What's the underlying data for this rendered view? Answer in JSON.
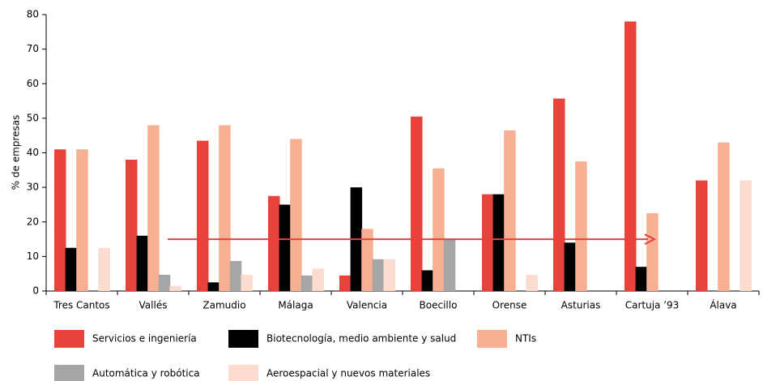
{
  "chart_data": {
    "type": "bar",
    "y_label": "% de empresas",
    "categories": [
      "Tres Cantos",
      "Vallés",
      "Zamudio",
      "Málaga",
      "Valencia",
      "Boecillo",
      "Orense",
      "Asturias",
      "Cartuja ’93",
      "Álava"
    ],
    "series": [
      {
        "name": "Servicios e ingeniería",
        "color": "#e8423a",
        "values": [
          41,
          38,
          43.5,
          27.5,
          4.5,
          50.5,
          28,
          55.7,
          78,
          32
        ]
      },
      {
        "name": "Biotecnología, medio ambiente y salud",
        "color": "#000000",
        "values": [
          12.5,
          16,
          2.5,
          25,
          30,
          6,
          28,
          14,
          7,
          0
        ]
      },
      {
        "name": "NTIs",
        "color": "#f7b093",
        "values": [
          41,
          48,
          48,
          44,
          18,
          35.5,
          46.5,
          37.5,
          22.5,
          43
        ]
      },
      {
        "name": "Automática y robótica",
        "color": "#a6a6a6",
        "values": [
          0,
          4.7,
          8.7,
          4.5,
          9.2,
          15,
          0,
          0,
          0,
          0
        ]
      },
      {
        "name": "Aeroespacial y nuevos materiales",
        "color": "#fcdccf",
        "values": [
          12.5,
          1.5,
          4.7,
          6.5,
          9.2,
          0,
          4.7,
          0,
          0,
          32
        ]
      }
    ],
    "ylim": [
      0,
      80
    ],
    "yticks": [
      0,
      10,
      20,
      30,
      40,
      50,
      60,
      70,
      80
    ],
    "grid": false
  }
}
